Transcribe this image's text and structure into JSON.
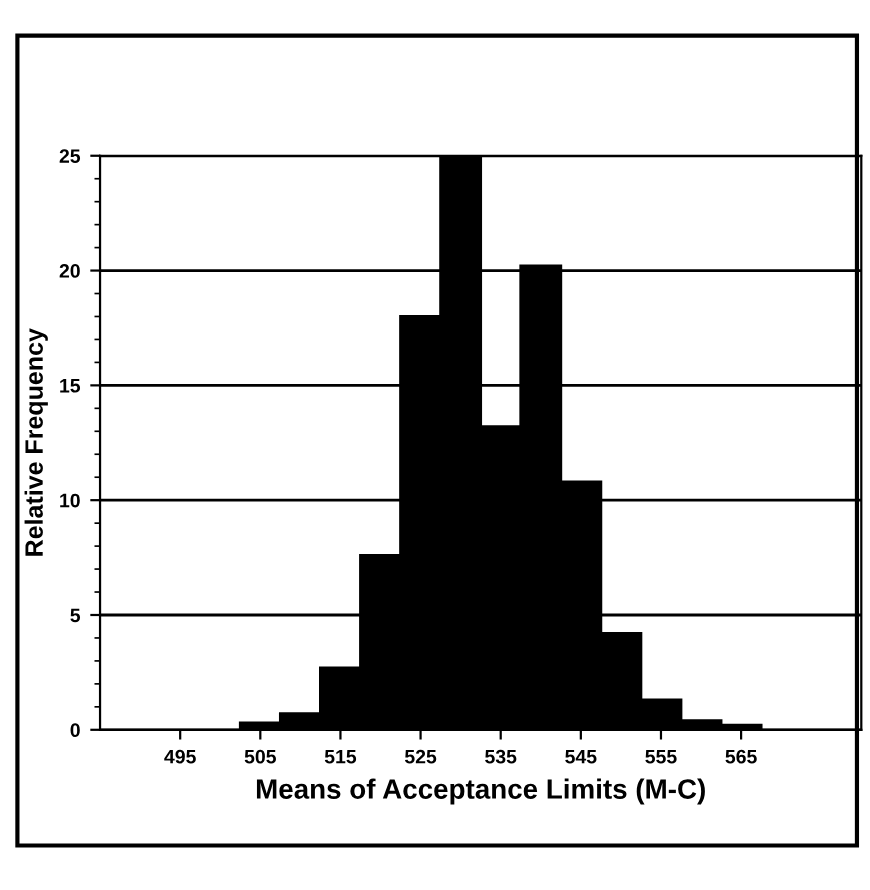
{
  "chart_data": {
    "type": "histogram",
    "xlabel": "Means of Acceptance Limits (M-C)",
    "ylabel": "Relative Frequency",
    "bins": [
      502.5,
      507.5,
      512.5,
      517.5,
      522.5,
      527.5,
      532.5,
      537.5,
      542.5,
      547.5,
      552.5,
      557.5,
      562.5,
      567.5
    ],
    "values": [
      0.3,
      0.7,
      2.7,
      7.6,
      18,
      25,
      13.2,
      20.2,
      10.8,
      4.2,
      1.3,
      0.4,
      0.2
    ],
    "color": "#000000",
    "xlim": [
      485,
      580
    ],
    "xticks": [
      495,
      505,
      515,
      525,
      535,
      545,
      555,
      565
    ],
    "ylim": [
      0,
      25
    ],
    "yticks": [
      0,
      5,
      10,
      15,
      20,
      25
    ],
    "grid": "y",
    "legend": false
  }
}
